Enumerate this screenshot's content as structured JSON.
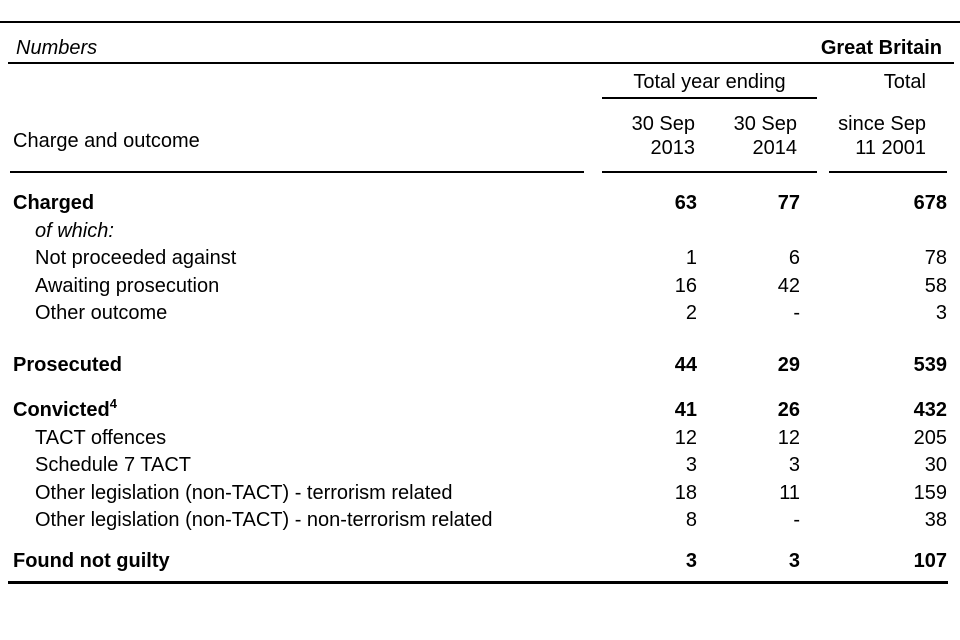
{
  "header": {
    "units_label": "Numbers",
    "region_label": "Great Britain"
  },
  "column_headers": {
    "group_label": "Total year ending",
    "year1": [
      "30 Sep",
      "2013"
    ],
    "year2": [
      "30 Sep",
      "2014"
    ],
    "total": [
      "Total",
      "since Sep",
      "11 2001"
    ],
    "row_header": "Charge and outcome"
  },
  "table": {
    "sections": [
      {
        "rows": [
          {
            "label": "Charged",
            "sup": "",
            "bold": true,
            "italic": false,
            "indent": false,
            "values": [
              "63",
              "77",
              "678"
            ]
          },
          {
            "label": "of which:",
            "sup": "",
            "bold": false,
            "italic": true,
            "indent": true,
            "values": [
              "",
              "",
              ""
            ]
          },
          {
            "label": "Not proceeded against",
            "sup": "",
            "bold": false,
            "italic": false,
            "indent": true,
            "values": [
              "1",
              "6",
              "78"
            ]
          },
          {
            "label": "Awaiting prosecution",
            "sup": "",
            "bold": false,
            "italic": false,
            "indent": true,
            "values": [
              "16",
              "42",
              "58"
            ]
          },
          {
            "label": "Other outcome",
            "sup": "",
            "bold": false,
            "italic": false,
            "indent": true,
            "values": [
              "2",
              "-",
              "3"
            ]
          }
        ]
      },
      {
        "rows": [
          {
            "label": "Prosecuted",
            "sup": "",
            "bold": true,
            "italic": false,
            "indent": false,
            "values": [
              "44",
              "29",
              "539"
            ]
          }
        ]
      },
      {
        "rows": [
          {
            "label": "Convicted",
            "sup": "4",
            "bold": true,
            "italic": false,
            "indent": false,
            "values": [
              "41",
              "26",
              "432"
            ]
          },
          {
            "label": "TACT offences",
            "sup": "",
            "bold": false,
            "italic": false,
            "indent": true,
            "values": [
              "12",
              "12",
              "205"
            ]
          },
          {
            "label": "Schedule 7 TACT",
            "sup": "",
            "bold": false,
            "italic": false,
            "indent": true,
            "values": [
              "3",
              "3",
              "30"
            ]
          },
          {
            "label": "Other legislation (non-TACT) - terrorism related",
            "sup": "",
            "bold": false,
            "italic": false,
            "indent": true,
            "values": [
              "18",
              "11",
              "159"
            ]
          },
          {
            "label": "Other legislation (non-TACT) - non-terrorism related",
            "sup": "",
            "bold": false,
            "italic": false,
            "indent": true,
            "values": [
              "8",
              "-",
              "38"
            ]
          }
        ]
      },
      {
        "rows": [
          {
            "label": "Found not guilty",
            "sup": "",
            "bold": true,
            "italic": false,
            "indent": false,
            "values": [
              "3",
              "3",
              "107"
            ]
          }
        ]
      }
    ]
  },
  "colors": {
    "text": "#000000",
    "rule": "#000000",
    "background": "#ffffff"
  }
}
